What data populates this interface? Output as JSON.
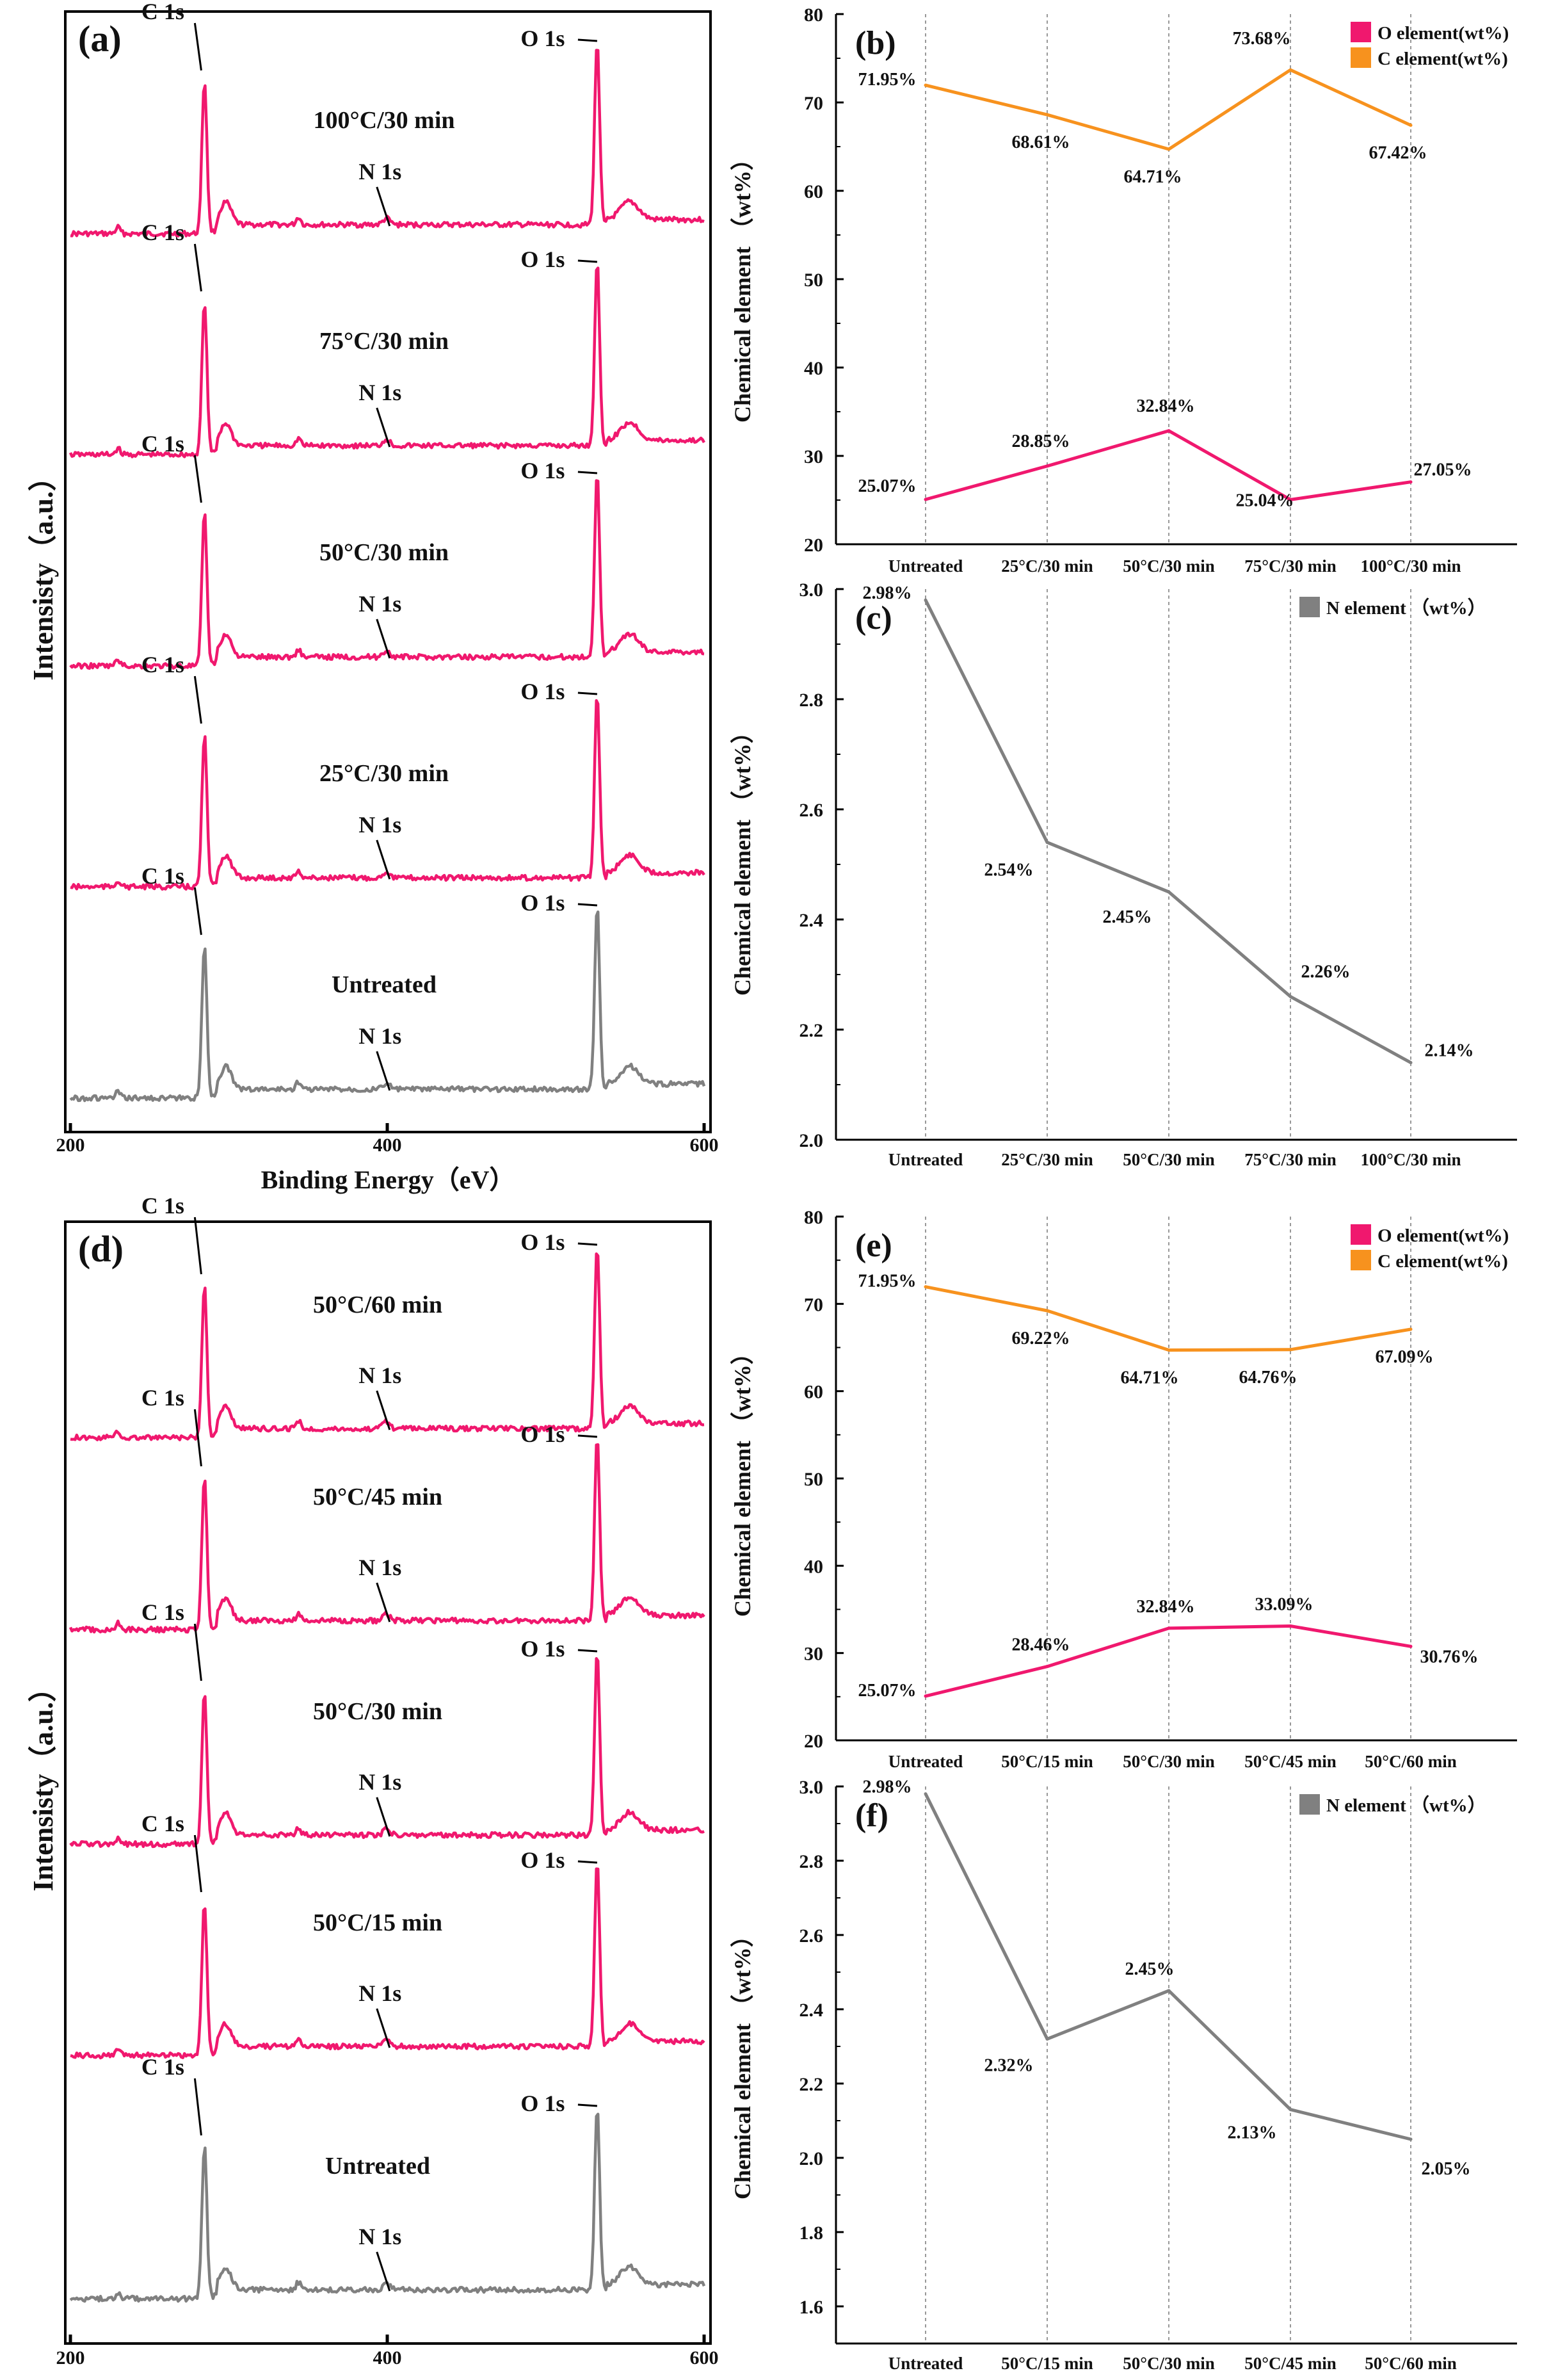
{
  "colors": {
    "pink": "#f0186e",
    "orange": "#f7921e",
    "gray": "#808080",
    "axis": "#000000",
    "grid": "#999999"
  },
  "chart_data": [
    {
      "id": "a",
      "type": "line",
      "panel_label": "(a)",
      "xlabel": "Binding Energy（eV）",
      "ylabel": "Intensisty（a.u.）",
      "xlim": [
        200,
        600
      ],
      "xticks": [
        "200",
        "400",
        "600"
      ],
      "peak_positions_eV": {
        "C 1s": 284.6,
        "N 1s": 399.5,
        "O 1s": 532.5
      },
      "series": [
        {
          "name": "100°C/30 min",
          "color": "pink",
          "labels": [
            "C 1s",
            "N 1s",
            "O 1s"
          ]
        },
        {
          "name": "75°C/30 min",
          "color": "pink",
          "labels": [
            "C 1s",
            "N 1s",
            "O 1s"
          ]
        },
        {
          "name": "50°C/30 min",
          "color": "pink",
          "labels": [
            "C 1s",
            "N 1s",
            "O 1s"
          ]
        },
        {
          "name": "25°C/30 min",
          "color": "pink",
          "labels": [
            "C 1s",
            "N 1s",
            "O 1s"
          ]
        },
        {
          "name": "Untreated",
          "color": "gray",
          "labels": [
            "C 1s",
            "N 1s",
            "O 1s"
          ]
        }
      ]
    },
    {
      "id": "b",
      "type": "line",
      "panel_label": "(b)",
      "categories": [
        "Untreated",
        "25°C/30 min",
        "50°C/30 min",
        "75°C/30 min",
        "100°C/30 min"
      ],
      "ylabel": "Chemical element （wt%）",
      "ylim": [
        20,
        80
      ],
      "yticks": [
        20,
        30,
        40,
        50,
        60,
        70,
        80
      ],
      "legend_position": "top-right",
      "series": [
        {
          "name": "O element(wt%)",
          "color": "pink",
          "values": [
            25.07,
            28.85,
            32.84,
            25.04,
            27.05
          ],
          "labels": [
            "25.07%",
            "28.85%",
            "32.84%",
            "25.04%",
            "27.05%"
          ]
        },
        {
          "name": "C element(wt%)",
          "color": "orange",
          "values": [
            71.95,
            68.61,
            64.71,
            73.68,
            67.42
          ],
          "labels": [
            "71.95%",
            "68.61%",
            "64.71%",
            "73.68%",
            "67.42%"
          ]
        }
      ]
    },
    {
      "id": "c",
      "type": "line",
      "panel_label": "(c)",
      "categories": [
        "Untreated",
        "25°C/30 min",
        "50°C/30 min",
        "75°C/30 min",
        "100°C/30 min"
      ],
      "ylabel": "Chemical element （wt%）",
      "ylim": [
        2.0,
        3.0
      ],
      "yticks": [
        "2.0",
        "2.2",
        "2.4",
        "2.6",
        "2.8",
        "3.0"
      ],
      "legend_position": "top-right",
      "series": [
        {
          "name": "N element （wt%）",
          "color": "gray",
          "values": [
            2.98,
            2.54,
            2.45,
            2.26,
            2.14
          ],
          "labels": [
            "2.98%",
            "2.54%",
            "2.45%",
            "2.26%",
            "2.14%"
          ]
        }
      ]
    },
    {
      "id": "d",
      "type": "line",
      "panel_label": "(d)",
      "xlabel": "Binding Energy（eV）",
      "ylabel": "Intensisty（a.u.）",
      "xlim": [
        200,
        600
      ],
      "xticks": [
        "200",
        "400",
        "600"
      ],
      "peak_positions_eV": {
        "C 1s": 284.6,
        "N 1s": 399.5,
        "O 1s": 532.5
      },
      "series": [
        {
          "name": "50°C/60 min",
          "color": "pink",
          "labels": [
            "C 1s",
            "N 1s",
            "O 1s"
          ]
        },
        {
          "name": "50°C/45 min",
          "color": "pink",
          "labels": [
            "C 1s",
            "N 1s",
            "O 1s"
          ]
        },
        {
          "name": "50°C/30 min",
          "color": "pink",
          "labels": [
            "C 1s",
            "N 1s",
            "O 1s"
          ]
        },
        {
          "name": "50°C/15 min",
          "color": "pink",
          "labels": [
            "C 1s",
            "N 1s",
            "O 1s"
          ]
        },
        {
          "name": "Untreated",
          "color": "gray",
          "labels": [
            "C 1s",
            "N 1s",
            "O 1s"
          ]
        }
      ]
    },
    {
      "id": "e",
      "type": "line",
      "panel_label": "(e)",
      "categories": [
        "Untreated",
        "50°C/15 min",
        "50°C/30 min",
        "50°C/45 min",
        "50°C/60 min"
      ],
      "ylabel": "Chemical element （wt%）",
      "ylim": [
        20,
        80
      ],
      "yticks": [
        20,
        30,
        40,
        50,
        60,
        70,
        80
      ],
      "legend_position": "top-right",
      "series": [
        {
          "name": "O element(wt%)",
          "color": "pink",
          "values": [
            25.07,
            28.46,
            32.84,
            33.09,
            30.76
          ],
          "labels": [
            "25.07%",
            "28.46%",
            "32.84%",
            "33.09%",
            "30.76%"
          ]
        },
        {
          "name": "C element(wt%)",
          "color": "orange",
          "values": [
            71.95,
            69.22,
            64.71,
            64.76,
            67.09
          ],
          "labels": [
            "71.95%",
            "69.22%",
            "64.71%",
            "64.76%",
            "67.09%"
          ]
        }
      ]
    },
    {
      "id": "f",
      "type": "line",
      "panel_label": "(f)",
      "categories": [
        "Untreated",
        "50°C/15 min",
        "50°C/30 min",
        "50°C/45 min",
        "50°C/60 min"
      ],
      "ylabel": "Chemical element （wt%）",
      "ylim": [
        1.5,
        3.0
      ],
      "yticks": [
        "1.6",
        "1.8",
        "2.0",
        "2.2",
        "2.4",
        "2.6",
        "2.8",
        "3.0"
      ],
      "legend_position": "top-right",
      "series": [
        {
          "name": "N element （wt%）",
          "color": "gray",
          "values": [
            2.98,
            2.32,
            2.45,
            2.13,
            2.05
          ],
          "labels": [
            "2.98%",
            "2.32%",
            "2.45%",
            "2.13%",
            "2.05%"
          ]
        }
      ]
    }
  ]
}
